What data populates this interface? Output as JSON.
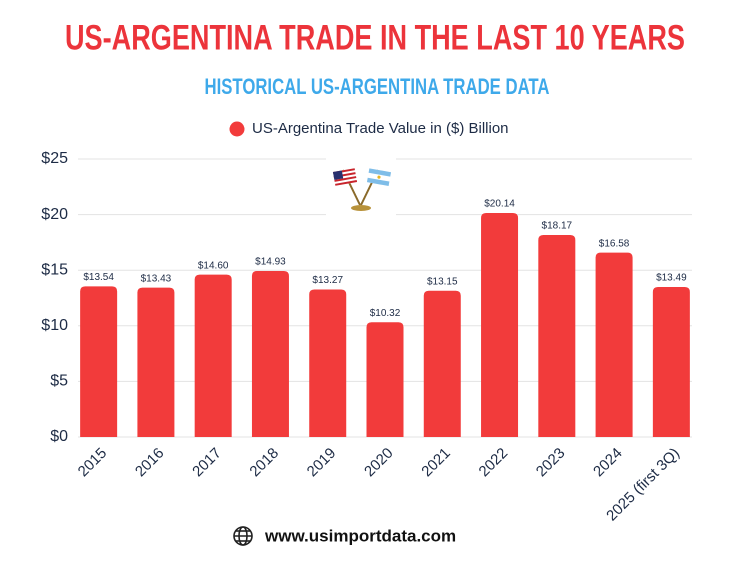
{
  "chart_data": {
    "type": "bar",
    "title": "US-ARGENTINA TRADE IN THE LAST 10 YEARS",
    "subtitle": "HISTORICAL US-ARGENTINA TRADE DATA",
    "categories": [
      "2015",
      "2016",
      "2017",
      "2018",
      "2019",
      "2020",
      "2021",
      "2022",
      "2023",
      "2024",
      "2025 (first 3Q)"
    ],
    "series": [
      {
        "name": "US-Argentina Trade Value in ($) Billion",
        "color": "#f23b3b",
        "values": [
          13.54,
          13.43,
          14.6,
          14.93,
          13.27,
          10.32,
          13.15,
          20.14,
          18.17,
          16.58,
          13.49
        ],
        "value_labels": [
          "$13.54",
          "$13.43",
          "$14.60",
          "$14.93",
          "$13.27",
          "$10.32",
          "$13.15",
          "$20.14",
          "$18.17",
          "$16.58",
          "$13.49"
        ]
      }
    ],
    "ylim": [
      0,
      25
    ],
    "yticks": [
      {
        "value": 0,
        "label": "$0"
      },
      {
        "value": 5,
        "label": "$5"
      },
      {
        "value": 10,
        "label": "$10"
      },
      {
        "value": 15,
        "label": "$15"
      },
      {
        "value": 20,
        "label": "$20"
      },
      {
        "value": 25,
        "label": "$25"
      }
    ],
    "grid": true,
    "footer": "www.usimportdata.com"
  }
}
